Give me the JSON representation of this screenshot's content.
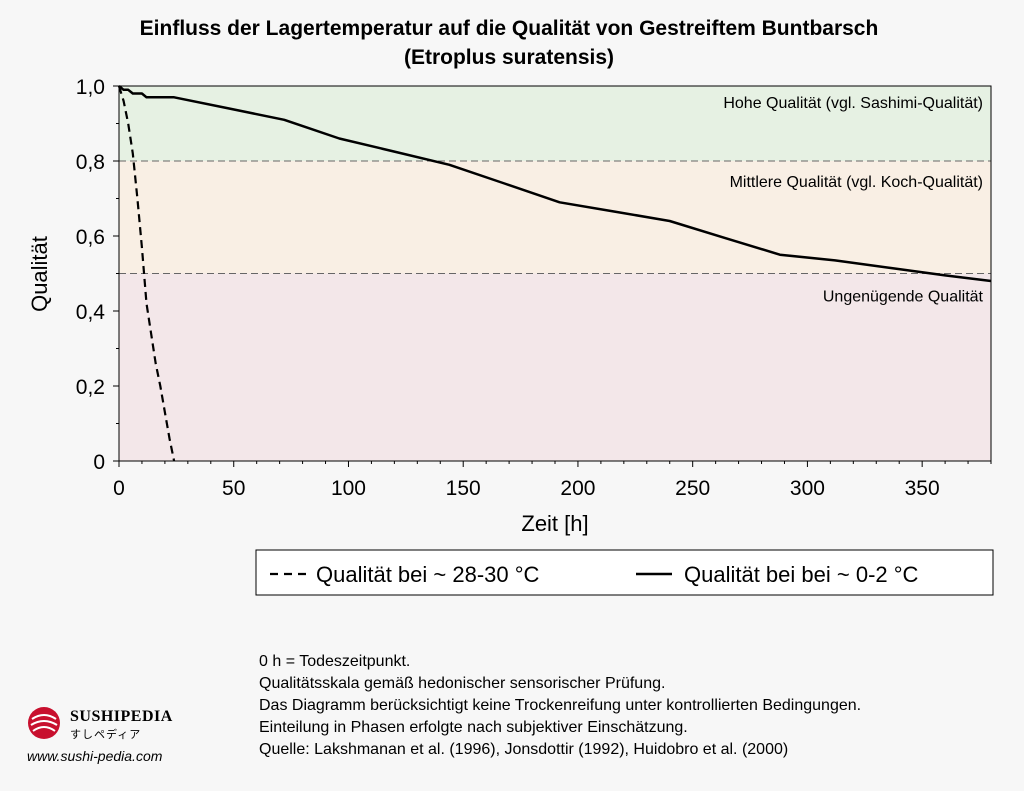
{
  "chart_data": {
    "type": "line",
    "title": "Einfluss der Lagertemperatur auf die Qualität von Gestreiftem Buntbarsch",
    "subtitle": "(Etroplus suratensis)",
    "xlabel": "Zeit [h]",
    "ylabel": "Qualität",
    "xlim": [
      0,
      380
    ],
    "ylim": [
      0,
      1.0
    ],
    "x_ticks": [
      "0",
      "50",
      "100",
      "150",
      "200",
      "250",
      "300",
      "350"
    ],
    "y_ticks": [
      "0",
      "0,2",
      "0,4",
      "0,6",
      "0,8",
      "1,0"
    ],
    "zones": [
      {
        "label": "Hohe Qualität (vgl. Sashimi-Qualität)",
        "from": 0.8,
        "to": 1.0,
        "color": "#e6f1e3"
      },
      {
        "label": "Mittlere Qualität (vgl. Koch-Qualität)",
        "from": 0.5,
        "to": 0.8,
        "color": "#f9efe4"
      },
      {
        "label": "Ungenügende Qualität",
        "from": 0.0,
        "to": 0.5,
        "color": "#f3e7e9"
      }
    ],
    "thresholds": [
      0.8,
      0.5
    ],
    "series": [
      {
        "name": "Qualität bei ~ 28-30 °C",
        "style": "dashed",
        "x": [
          0,
          2,
          4,
          6,
          8,
          10,
          12,
          14,
          16,
          18,
          20,
          22,
          24
        ],
        "y": [
          1.0,
          0.96,
          0.9,
          0.82,
          0.7,
          0.57,
          0.42,
          0.34,
          0.26,
          0.2,
          0.13,
          0.06,
          0.0
        ]
      },
      {
        "name": "Qualität bei bei ~ 0-2 °C",
        "style": "solid",
        "x": [
          0,
          2,
          4,
          6,
          8,
          10,
          12,
          24,
          48,
          72,
          96,
          120,
          144,
          168,
          192,
          216,
          240,
          264,
          288,
          312,
          336,
          360,
          380
        ],
        "y": [
          1.0,
          0.99,
          0.99,
          0.98,
          0.98,
          0.98,
          0.97,
          0.97,
          0.94,
          0.91,
          0.86,
          0.825,
          0.79,
          0.74,
          0.69,
          0.665,
          0.64,
          0.595,
          0.55,
          0.535,
          0.515,
          0.495,
          0.48
        ]
      }
    ],
    "legend_position": "bottom"
  },
  "notes": [
    "0 h = Todeszeitpunkt.",
    "Qualitätsskala gemäß hedonischer sensorischer Prüfung.",
    "Das Diagramm berücksichtigt keine Trockenreifung unter kontrollierten Bedingungen.",
    "Einteilung in Phasen erfolgte nach subjektiver Einschätzung.",
    "Quelle: Lakshmanan et al. (1996), Jonsdottir (1992), Huidobro et al. (2000)"
  ],
  "logo": {
    "name": "SUSHIPEDIA",
    "subtitle": "すしペディア",
    "url": "www.sushi-pedia.com",
    "accent": "#c8102e"
  }
}
